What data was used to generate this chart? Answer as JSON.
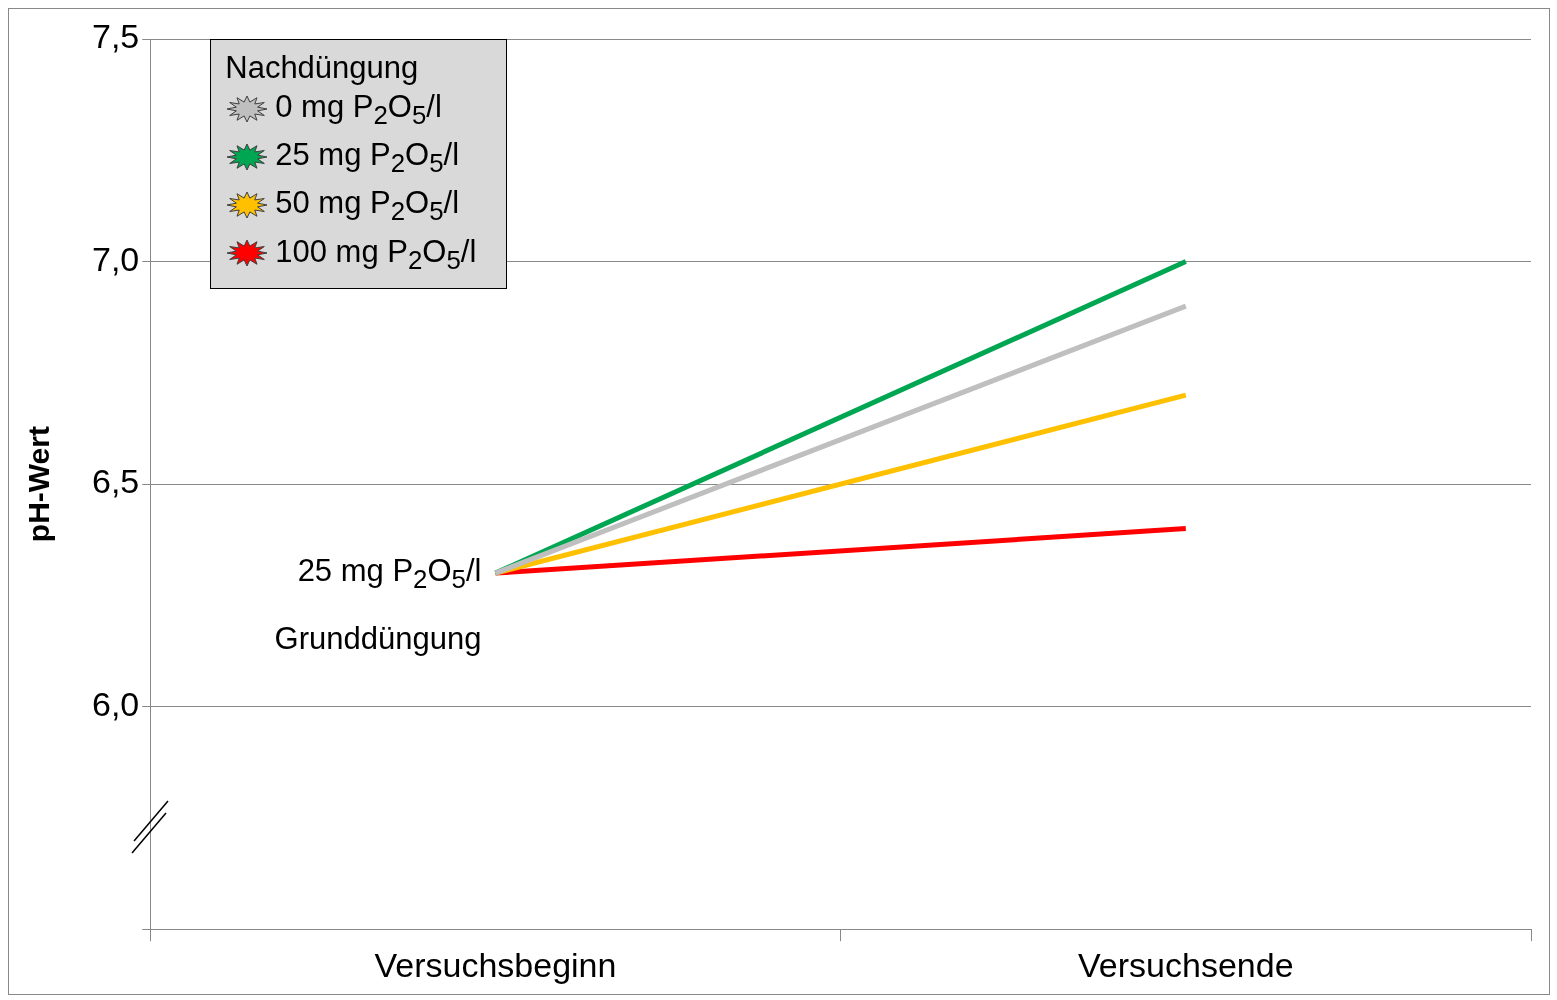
{
  "chart_data": {
    "type": "line",
    "ylabel": "pH-Wert",
    "legend_title": "Nachdüngung",
    "legend": "top left",
    "grid": "y",
    "marker": "none",
    "line_style": "solid",
    "categories": [
      "Versuchsbeginn",
      "Versuchsende"
    ],
    "ylim": [
      5.5,
      7.5
    ],
    "yticks": [
      {
        "value": 5.5,
        "label": null
      },
      {
        "value": 6.0,
        "label": "6,0"
      },
      {
        "value": 6.5,
        "label": "6,5"
      },
      {
        "value": 7.0,
        "label": "7,0"
      },
      {
        "value": 7.5,
        "label": "7,5"
      }
    ],
    "series": [
      {
        "name": "0 mg P$_{2}$O$_{5}$/l",
        "color": "#bfbfbf",
        "values": [
          6.3,
          6.9
        ]
      },
      {
        "name": "25 mg P$_{2}$O$_{5}$/l",
        "color": "#00a651",
        "values": [
          6.3,
          7.0
        ]
      },
      {
        "name": "50 mg P$_{2}$O$_{5}$/l",
        "color": "#ffc000",
        "values": [
          6.3,
          6.7
        ]
      },
      {
        "name": "100 mg P$_{2}$O$_{5}$/l",
        "color": "#ff0000",
        "values": [
          6.3,
          6.4
        ]
      }
    ],
    "annotations": [
      {
        "text": "25 mg P$_{2}$O$_{5}$/l",
        "x": "Versuchsbeginn",
        "y": 6.3
      },
      "Grunddüngung"
    ]
  }
}
